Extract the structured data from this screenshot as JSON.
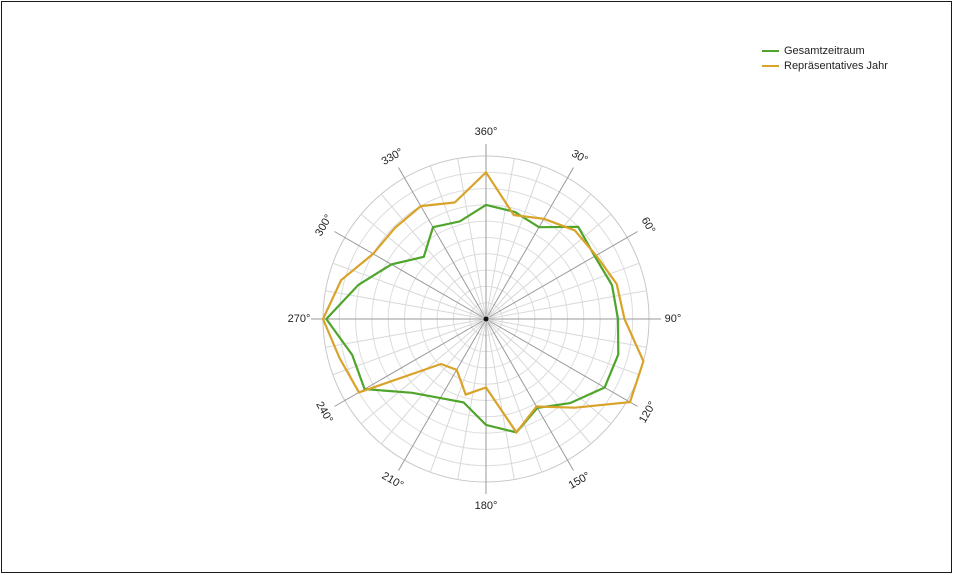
{
  "chart_data": {
    "type": "radar",
    "angle_labels": [
      "360°",
      "30°",
      "60°",
      "90°",
      "120°",
      "150°",
      "180°",
      "210°",
      "240°",
      "270°",
      "300°",
      "330°"
    ],
    "angles": [
      0,
      15,
      30,
      45,
      60,
      75,
      90,
      105,
      120,
      135,
      150,
      165,
      180,
      195,
      210,
      225,
      240,
      255,
      270,
      285,
      300,
      315,
      330,
      345
    ],
    "rlim": [
      0,
      1
    ],
    "grid": true,
    "legend_position": "top-right",
    "series": [
      {
        "name": "Gesamtzeitraum",
        "color": "#4ea52a",
        "values": [
          0.7,
          0.68,
          0.65,
          0.8,
          0.77,
          0.8,
          0.81,
          0.84,
          0.84,
          0.73,
          0.63,
          0.72,
          0.65,
          0.53,
          0.56,
          0.64,
          0.86,
          0.85,
          0.98,
          0.81,
          0.67,
          0.54,
          0.65,
          0.62
        ]
      },
      {
        "name": "Repräsentatives Jahr",
        "color": "#d9a32a",
        "values": [
          0.9,
          0.66,
          0.71,
          0.77,
          0.78,
          0.83,
          0.85,
          1.0,
          1.02,
          0.77,
          0.62,
          0.72,
          0.42,
          0.48,
          0.36,
          0.39,
          0.9,
          0.93,
          1.0,
          0.92,
          0.8,
          0.79,
          0.8,
          0.74
        ]
      }
    ]
  }
}
